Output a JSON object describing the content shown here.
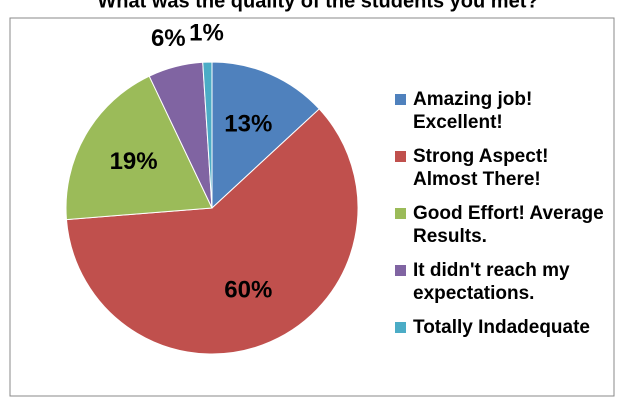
{
  "chart_data": {
    "type": "pie",
    "title": "What was the quality of the students you met?",
    "categories": [
      "Amazing job! Excellent!",
      "Strong Aspect! Almost There!",
      "Good Effort! Average Results.",
      "It didn't reach my expectations.",
      "Totally Indadequate"
    ],
    "values": [
      13,
      60,
      19,
      6,
      1
    ],
    "value_labels": [
      "13%",
      "60%",
      "19%",
      "6%",
      "1%"
    ],
    "colors": [
      "#4f81bd",
      "#c0504d",
      "#9bbb59",
      "#8064a2",
      "#4bacc6"
    ],
    "legend": "right"
  }
}
